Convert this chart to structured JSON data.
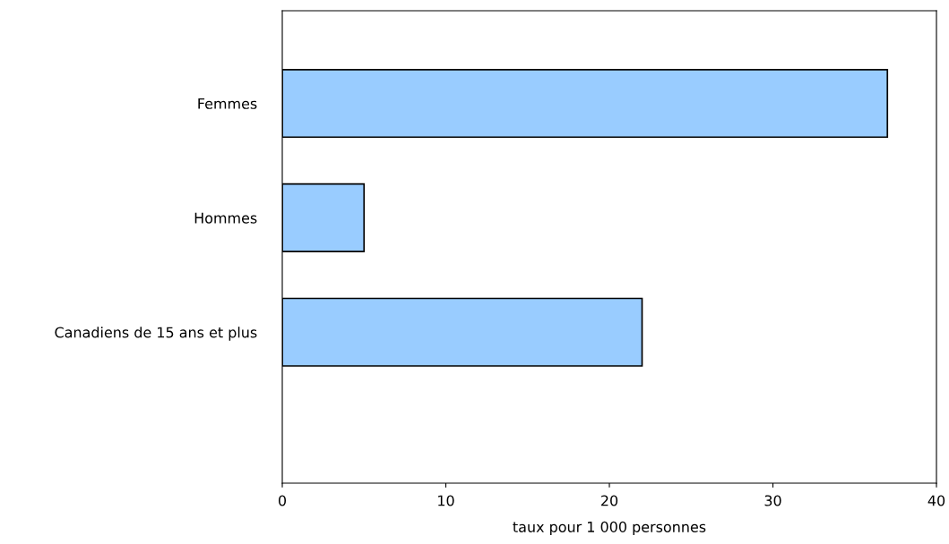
{
  "chart_data": {
    "type": "bar",
    "orientation": "horizontal",
    "categories": [
      "Femmes",
      "Hommes",
      "Canadiens de 15 ans et plus"
    ],
    "values": [
      37,
      5,
      22
    ],
    "color": "#99ccff",
    "xlabel": "taux pour 1 000 personnes",
    "xlim": [
      0,
      40
    ],
    "xticks": [
      0,
      10,
      20,
      30,
      40
    ],
    "grid": false,
    "legend": false
  }
}
